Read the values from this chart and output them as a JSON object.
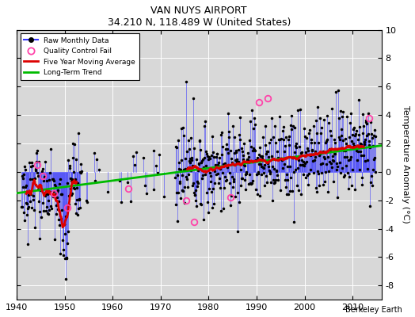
{
  "title": "VAN NUYS AIRPORT",
  "subtitle": "34.210 N, 118.489 W (United States)",
  "ylabel": "Temperature Anomaly (°C)",
  "attribution": "Berkeley Earth",
  "xlim": [
    1940,
    2016
  ],
  "ylim": [
    -9,
    10
  ],
  "yticks": [
    -8,
    -6,
    -4,
    -2,
    0,
    2,
    4,
    6,
    8,
    10
  ],
  "xticks": [
    1940,
    1950,
    1960,
    1970,
    1980,
    1990,
    2000,
    2010
  ],
  "plot_bg": "#d8d8d8",
  "fig_bg": "#ffffff",
  "raw_color": "#3333ff",
  "dot_color": "#000000",
  "ma_color": "#dd0000",
  "trend_color": "#00bb00",
  "qc_color": "#ff44aa",
  "seed": 12345,
  "start_year": 1941.0,
  "end_year": 2014.9,
  "trend_intercept": -1.5,
  "trend_slope": 0.044,
  "dense1_start": 1941.0,
  "dense1_end": 1953.5,
  "sparse_start": 1953.5,
  "sparse_end": 1962.0,
  "gap_start": 1962.0,
  "gap_end": 1963.5,
  "sparse2_start": 1963.5,
  "sparse2_end": 1973.0,
  "dense2_start": 1973.0,
  "dense2_end": 2014.9,
  "qc_years": [
    1944.25,
    1945.5,
    1947.75,
    1950.5,
    1963.2,
    1975.3,
    1977.0,
    1984.5,
    1990.5,
    1992.3,
    2013.5
  ],
  "qc_vals": [
    0.5,
    -0.3,
    -1.5,
    -2.5,
    -1.2,
    -2.0,
    -3.5,
    -1.8,
    4.9,
    5.2,
    3.8
  ]
}
